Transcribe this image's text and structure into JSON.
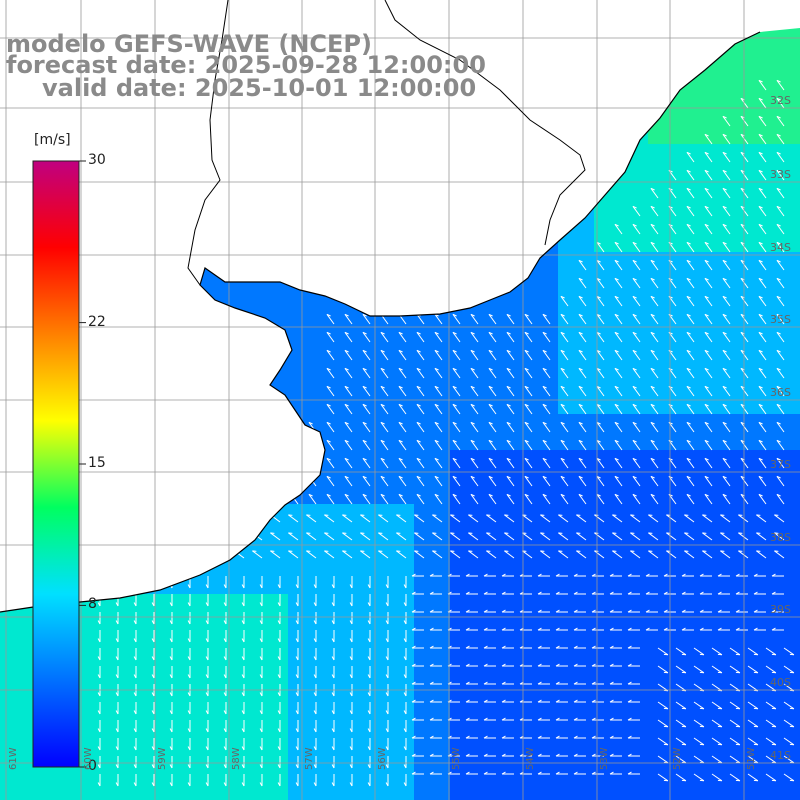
{
  "title": {
    "line1": "modelo GEFS-WAVE (NCEP)",
    "line2": "forecast date: 2025-09-28 12:00:00",
    "line3": "valid date: 2025-10-01 12:00:00"
  },
  "colorbar": {
    "unit": "[m/s]",
    "ticks": [
      "30",
      "22",
      "15",
      "8",
      "0"
    ],
    "tick_values": [
      30,
      22,
      15,
      8,
      0
    ],
    "colors": [
      "#0000ff",
      "#0070ff",
      "#00e0ff",
      "#00ff60",
      "#ffff00",
      "#ff8000",
      "#ff0000",
      "#c00080"
    ]
  },
  "map": {
    "lat_labels": [
      "32S",
      "33S",
      "34S",
      "35S",
      "36S",
      "37S",
      "38S",
      "39S",
      "40S",
      "41S"
    ],
    "lon_labels": [
      "61W",
      "60W",
      "59W",
      "58W",
      "57W",
      "56W",
      "55W",
      "54W",
      "53W",
      "52W",
      "51W"
    ],
    "ocean_colors": [
      "#0050ff",
      "#0078ff",
      "#00b8ff",
      "#00e8d0",
      "#20f090"
    ],
    "land_color": "#ffffff",
    "coast_color": "#000000",
    "grid_color": "#999999",
    "vector_color": "#ffffff"
  }
}
